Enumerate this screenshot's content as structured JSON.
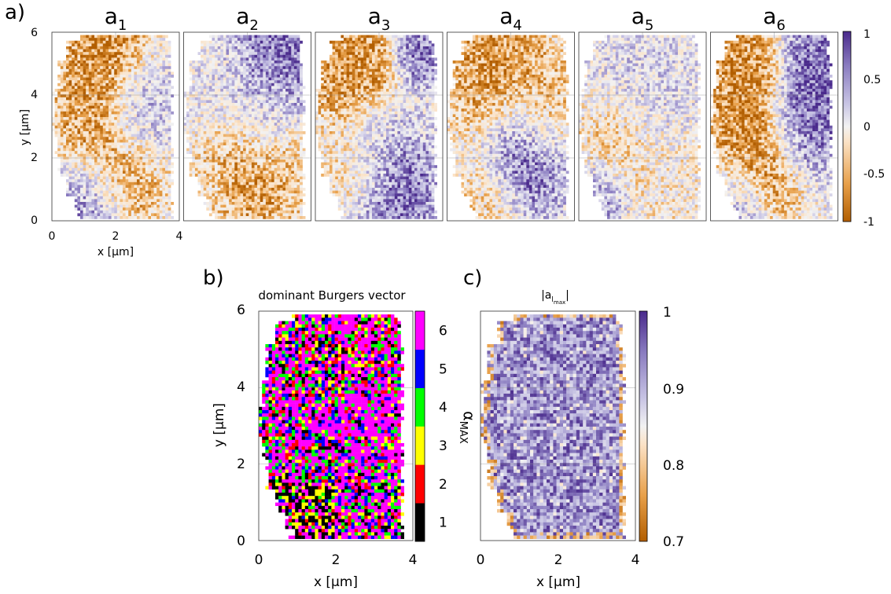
{
  "chart_data": [
    {
      "type": "heatmap",
      "panel_label": "a)",
      "subplot_titles": [
        {
          "base": "a",
          "sub": "1"
        },
        {
          "base": "a",
          "sub": "2"
        },
        {
          "base": "a",
          "sub": "3"
        },
        {
          "base": "a",
          "sub": "4"
        },
        {
          "base": "a",
          "sub": "5"
        },
        {
          "base": "a",
          "sub": "6"
        }
      ],
      "xlabel": "x [µm]",
      "ylabel": "y [µm]",
      "xlim": [
        0,
        4
      ],
      "ylim": [
        0,
        6
      ],
      "xticks": [
        "0",
        "2",
        "4"
      ],
      "yticks": [
        "0",
        "2",
        "4",
        "6"
      ],
      "colorbar": {
        "range": [
          -1,
          1
        ],
        "ticks": [
          "1",
          "0.5",
          "0",
          "-0.5",
          "-1"
        ],
        "colors": [
          "#b25e00",
          "#e8a04a",
          "#fbe2c6",
          "#f2f2f2",
          "#c8c4e4",
          "#8a7cc0",
          "#4a2a8c"
        ]
      },
      "grid": true
    },
    {
      "type": "heatmap",
      "panel_label": "b)",
      "title": "dominant Burgers vector",
      "xlabel": "x [µm]",
      "ylabel": "y [µm]",
      "xlim": [
        0,
        4
      ],
      "ylim": [
        0,
        6
      ],
      "xticks": [
        "0",
        "2",
        "4"
      ],
      "yticks": [
        "0",
        "2",
        "4",
        "6"
      ],
      "colorbar": {
        "label": {
          "base": "α",
          "sub": "MAX"
        },
        "categories": [
          "1",
          "2",
          "3",
          "4",
          "5",
          "6"
        ],
        "colors": [
          "#000000",
          "#ff0000",
          "#ffff00",
          "#00ff00",
          "#0000ff",
          "#ff00ff"
        ]
      },
      "grid": true
    },
    {
      "type": "heatmap",
      "panel_label": "c)",
      "title": {
        "pre": "|a",
        "sub": "l",
        "subsub": "max",
        "post": "|"
      },
      "xlabel": "x [µm]",
      "xlim": [
        0,
        4
      ],
      "ylim": [
        0,
        6
      ],
      "xticks": [
        "0",
        "2",
        "4"
      ],
      "colorbar": {
        "range": [
          0.7,
          1
        ],
        "ticks": [
          "1",
          "0.9",
          "0.8",
          "0.7"
        ],
        "colors": [
          "#b25e00",
          "#e8a04a",
          "#fbe2c6",
          "#f2f2f2",
          "#c8c4e4",
          "#8a7cc0",
          "#4a2a8c"
        ]
      },
      "grid": true
    }
  ]
}
